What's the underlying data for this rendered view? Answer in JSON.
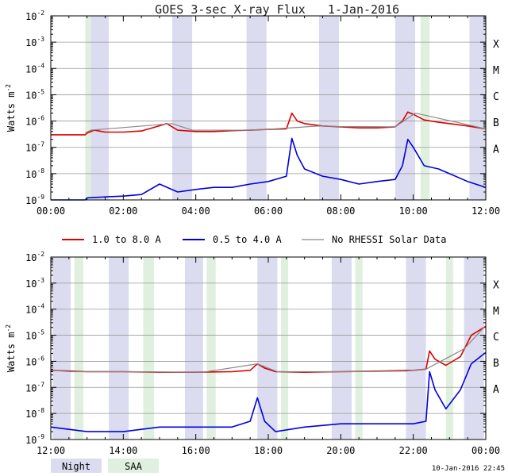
{
  "title": "GOES 3-sec X-ray Flux",
  "date": "1-Jan-2016",
  "ylabel": "Watts m",
  "ylabel_sup": "-2",
  "y_ticks": [
    {
      "base": "10",
      "exp": "-2"
    },
    {
      "base": "10",
      "exp": "-3"
    },
    {
      "base": "10",
      "exp": "-4"
    },
    {
      "base": "10",
      "exp": "-5"
    },
    {
      "base": "10",
      "exp": "-6"
    },
    {
      "base": "10",
      "exp": "-7"
    },
    {
      "base": "10",
      "exp": "-8"
    },
    {
      "base": "10",
      "exp": "-9"
    }
  ],
  "flare_classes": [
    "X",
    "M",
    "C",
    "B",
    "A"
  ],
  "legend": [
    {
      "label": "1.0 to 8.0 A",
      "color": "#dd0000"
    },
    {
      "label": "0.5 to 4.0 A",
      "color": "#0000dd"
    },
    {
      "label": "No RHESSI Solar Data",
      "color": "#888888"
    }
  ],
  "footer": {
    "night_label": "Night",
    "saa_label": "SAA",
    "night_color": "#dcdcf0",
    "saa_color": "#dff0df",
    "timestamp": "10-Jan-2016 22:45"
  },
  "chart_data": [
    {
      "type": "line",
      "x_unit": "hour of day (UT)",
      "xlim": [
        0,
        12
      ],
      "x_tick_labels": [
        "00:00",
        "02:00",
        "04:00",
        "06:00",
        "08:00",
        "10:00",
        "12:00"
      ],
      "ylim": [
        1e-09,
        0.01
      ],
      "y_scale": "log",
      "grid": true,
      "night_bands": [
        [
          1.1,
          1.6
        ],
        [
          3.35,
          3.9
        ],
        [
          5.4,
          5.95
        ],
        [
          7.4,
          7.95
        ],
        [
          9.5,
          10.05
        ],
        [
          11.55,
          12.0
        ]
      ],
      "saa_bands": [
        [
          0.95,
          1.1
        ],
        [
          10.2,
          10.45
        ],
        [
          12.0,
          12.0
        ]
      ],
      "series": [
        {
          "name": "1.0 to 8.0 A",
          "color": "#dd0000",
          "x": [
            0,
            0.5,
            0.95,
            1.0,
            1.2,
            1.5,
            2.0,
            2.5,
            2.9,
            3.2,
            3.5,
            4.0,
            4.5,
            5.0,
            5.5,
            6.0,
            6.5,
            6.65,
            6.8,
            7.0,
            7.5,
            8.0,
            8.5,
            9.0,
            9.5,
            9.7,
            9.85,
            10.0,
            10.3,
            10.7,
            11.0,
            11.5,
            12.0
          ],
          "y": [
            3e-07,
            3e-07,
            3e-07,
            3.5e-07,
            4.5e-07,
            3.8e-07,
            3.8e-07,
            4.2e-07,
            6e-07,
            8e-07,
            4.5e-07,
            4e-07,
            4e-07,
            4.3e-07,
            4.5e-07,
            4.8e-07,
            5e-07,
            2e-06,
            1e-06,
            8e-07,
            6.5e-07,
            6e-07,
            5.5e-07,
            5.5e-07,
            6e-07,
            1e-06,
            2.2e-06,
            1.8e-06,
            1.1e-06,
            9e-07,
            8e-07,
            6.5e-07,
            5e-07
          ]
        },
        {
          "name": "0.5 to 4.0 A",
          "color": "#0000dd",
          "x": [
            0,
            0.5,
            0.95,
            1.0,
            1.5,
            2.0,
            2.5,
            3.0,
            3.5,
            4.0,
            4.5,
            5.0,
            5.5,
            6.0,
            6.5,
            6.65,
            6.8,
            7.0,
            7.5,
            8.0,
            8.5,
            9.0,
            9.5,
            9.7,
            9.85,
            10.0,
            10.3,
            10.7,
            11.0,
            11.5,
            12.0
          ],
          "y": [
            1e-09,
            1e-09,
            1e-09,
            1.2e-09,
            1.3e-09,
            1.4e-09,
            1.6e-09,
            4e-09,
            2e-09,
            2.5e-09,
            3e-09,
            3e-09,
            4e-09,
            5e-09,
            8e-09,
            2.2e-07,
            5e-08,
            1.5e-08,
            8e-09,
            6e-09,
            4e-09,
            5e-09,
            6e-09,
            2e-08,
            2e-07,
            1e-07,
            2e-08,
            1.5e-08,
            1e-08,
            5e-09,
            3e-09
          ]
        },
        {
          "name": "No RHESSI Solar Data",
          "color": "#888888",
          "x": [
            0.95,
            1.1,
            3.35,
            3.9,
            5.4,
            5.95,
            7.4,
            7.95,
            9.5,
            10.05,
            11.55,
            12.0
          ],
          "y": [
            3.5e-07,
            4.5e-07,
            8e-07,
            4.5e-07,
            4.5e-07,
            4.8e-07,
            6.5e-07,
            6.2e-07,
            6e-07,
            2e-06,
            7e-07,
            5e-07
          ]
        }
      ]
    },
    {
      "type": "line",
      "x_unit": "hour of day (UT)",
      "xlim": [
        12,
        24
      ],
      "x_tick_labels": [
        "12:00",
        "14:00",
        "16:00",
        "18:00",
        "20:00",
        "22:00",
        "00:00"
      ],
      "ylim": [
        1e-09,
        0.01
      ],
      "y_scale": "log",
      "grid": true,
      "night_bands": [
        [
          12.05,
          12.55
        ],
        [
          13.6,
          14.15
        ],
        [
          15.7,
          16.2
        ],
        [
          17.7,
          18.25
        ],
        [
          19.75,
          20.3
        ],
        [
          21.8,
          22.35
        ],
        [
          23.4,
          23.95
        ]
      ],
      "saa_bands": [
        [
          12.65,
          12.9
        ],
        [
          14.55,
          14.85
        ],
        [
          16.3,
          16.55
        ],
        [
          18.35,
          18.55
        ],
        [
          20.4,
          20.6
        ],
        [
          22.9,
          23.1
        ]
      ],
      "series": [
        {
          "name": "1.0 to 8.0 A",
          "color": "#dd0000",
          "x": [
            12,
            13,
            14,
            15,
            16,
            17,
            17.5,
            17.7,
            17.9,
            18.2,
            19,
            20,
            21,
            22,
            22.35,
            22.45,
            22.6,
            22.9,
            23.3,
            23.6,
            24.0
          ],
          "y": [
            4.5e-07,
            4e-07,
            4e-07,
            3.8e-07,
            3.8e-07,
            4e-07,
            4.5e-07,
            8e-07,
            5.5e-07,
            4e-07,
            3.8e-07,
            4e-07,
            4.2e-07,
            4.5e-07,
            5e-07,
            2.5e-06,
            1.2e-06,
            7e-07,
            1.5e-06,
            1e-05,
            2.2e-05
          ]
        },
        {
          "name": "0.5 to 4.0 A",
          "color": "#0000dd",
          "x": [
            12,
            13,
            14,
            15,
            16,
            17,
            17.5,
            17.7,
            17.9,
            18.2,
            19,
            20,
            21,
            22,
            22.35,
            22.45,
            22.6,
            22.9,
            23.3,
            23.6,
            24.0
          ],
          "y": [
            3e-09,
            2e-09,
            2e-09,
            3e-09,
            3e-09,
            3e-09,
            5e-09,
            4e-08,
            5e-09,
            2e-09,
            3e-09,
            4e-09,
            4e-09,
            4e-09,
            5e-09,
            4e-07,
            8e-08,
            1.5e-08,
            8e-08,
            8e-07,
            2.2e-06
          ]
        },
        {
          "name": "No RHESSI Solar Data",
          "color": "#888888",
          "x": [
            12.05,
            12.55,
            13.6,
            14.15,
            15.7,
            16.2,
            17.7,
            18.25,
            19.75,
            20.3,
            21.8,
            22.35,
            23.4,
            23.95
          ],
          "y": [
            4.5e-07,
            4e-07,
            4e-07,
            4e-07,
            3.8e-07,
            3.8e-07,
            8e-07,
            4e-07,
            4e-07,
            4e-07,
            4.2e-07,
            5e-07,
            3e-06,
            2e-05
          ]
        }
      ]
    }
  ]
}
